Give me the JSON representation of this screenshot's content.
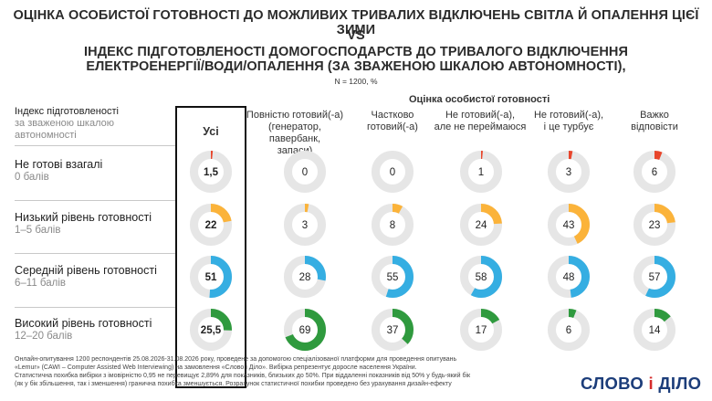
{
  "title_line1": "ОЦІНКА ОСОБИСТОЇ ГОТОВНОСТІ ДО МОЖЛИВИХ ТРИВАЛИХ ВІДКЛЮЧЕНЬ СВІТЛА Й ОПАЛЕННЯ ЦІЄЇ ЗИМИ",
  "title_vs": "VS",
  "title_line3": "ІНДЕКС ПІДГОТОВЛЕНОСТІ ДОМОГОСПОДАРСТВ ДО ТРИВАЛОГО ВІДКЛЮЧЕННЯ",
  "title_line4": "ЕЛЕКТРОЕНЕРГІЇ/ВОДИ/ОПАЛЕННЯ (ЗА ЗВАЖЕНОЮ ШКАЛОЮ АВТОНОМНОСТІ),",
  "n_label": "N = 1200, %",
  "group_header": "Оцінка особистої готовності",
  "row_header": {
    "line1": "Індекс підготовленості",
    "line2": "за зваженою шкалою",
    "line3": "автономності"
  },
  "colors": {
    "very_low": "#e8452b",
    "low": "#fbb33a",
    "medium": "#35aee2",
    "high": "#2f9a3e",
    "track": "#e6e6e6"
  },
  "chart_data": {
    "type": "donut-grid",
    "columns": [
      {
        "key": "usi",
        "lines": [
          "Усі"
        ]
      },
      {
        "key": "fully",
        "lines": [
          "Повністю готовий(-а)",
          "(генератор, павербанк,",
          "запаси)"
        ]
      },
      {
        "key": "partly",
        "lines": [
          "Частково",
          "готовий(-а)"
        ]
      },
      {
        "key": "not_unworried",
        "lines": [
          "Не готовий(-а),",
          "але не переймаюся"
        ]
      },
      {
        "key": "not_worried",
        "lines": [
          "Не готовий(-а),",
          "і це турбує"
        ]
      },
      {
        "key": "hard",
        "lines": [
          "Важко",
          "відповісти"
        ]
      }
    ],
    "rows": [
      {
        "label": "Не готові взагалі",
        "sublabel": "0 балів",
        "color_key": "very_low",
        "values": [
          1.5,
          0,
          0,
          1,
          3,
          6
        ],
        "display": [
          "1,5",
          "0",
          "0",
          "1",
          "3",
          "6"
        ]
      },
      {
        "label": "Низький рівень готовності",
        "sublabel": "1–5 балів",
        "color_key": "low",
        "values": [
          22,
          3,
          8,
          24,
          43,
          23
        ],
        "display": [
          "22",
          "3",
          "8",
          "24",
          "43",
          "23"
        ]
      },
      {
        "label": "Середній рівень готовності",
        "sublabel": "6–11 балів",
        "color_key": "medium",
        "values": [
          51,
          28,
          55,
          58,
          48,
          57
        ],
        "display": [
          "51",
          "28",
          "55",
          "58",
          "48",
          "57"
        ]
      },
      {
        "label": "Високий рівень готовності",
        "sublabel": "12–20 балів",
        "color_key": "high",
        "values": [
          25.5,
          69,
          37,
          17,
          6,
          14
        ],
        "display": [
          "25,5",
          "69",
          "37",
          "17",
          "6",
          "14"
        ]
      }
    ],
    "max": 100
  },
  "footer": {
    "line1": "Онлайн-опитування 1200 респондентів 25.08.2026-31.08.2026 року, проведене за допомогою спеціалізованої платформи для проведення опитувань",
    "line2": "«Lemur» (CAWI – Computer Assisted Web Interviewing) на замовлення «Слово і Діло». Вибірка репрезентує доросле населення України.",
    "line3": "Статистична похибка вибірки з імовірністю 0,95 не перевищує 2,89% для показників, близьких до 50%. При віддаленні показників від 50% у будь-який бік",
    "line4": "(як у бік збільшення, так і зменшення) гранична похибка зменшується. Розрахунок статистичної похибки проведено без урахування дизайн-ефекту"
  },
  "logo": {
    "part1": "СЛОВО",
    "part2": "і",
    "part3": "ДІЛО"
  }
}
